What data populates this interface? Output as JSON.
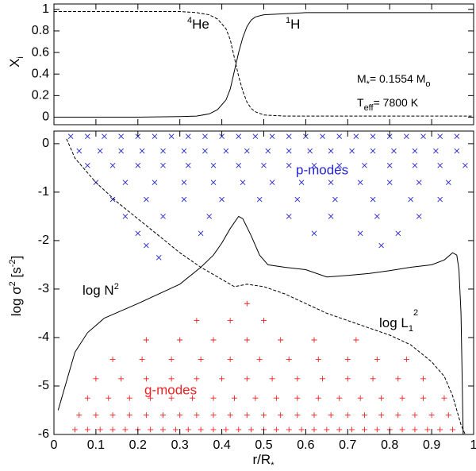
{
  "chart_data": [
    {
      "type": "line",
      "ylabel": {
        "base": "X",
        "sub": "i"
      },
      "annotations": [
        {
          "sup": "4",
          "text": "He"
        },
        {
          "sup": "1",
          "text": "H"
        },
        {
          "base": "M",
          "sub": "*",
          "text": "= 0.1554 M",
          "sub2": "o"
        },
        {
          "base": "T",
          "sub": "eff",
          "text": "= 7800 K"
        }
      ],
      "xlim": [
        0,
        1
      ],
      "ylim": [
        -0.07,
        1.05
      ],
      "xticks": [
        0,
        0.1,
        0.2,
        0.3,
        0.4,
        0.5,
        0.6,
        0.7,
        0.8,
        0.9,
        1
      ],
      "yticks": [
        0,
        0.2,
        0.4,
        0.6,
        0.8,
        1
      ],
      "series": [
        {
          "name": "4He",
          "color": "#000000",
          "dash": true,
          "x": [
            0,
            0.05,
            0.1,
            0.2,
            0.3,
            0.34,
            0.37,
            0.39,
            0.41,
            0.42,
            0.43,
            0.44,
            0.45,
            0.46,
            0.47,
            0.48,
            0.5,
            0.55,
            0.6,
            0.8,
            1
          ],
          "values": [
            0.98,
            0.98,
            0.98,
            0.98,
            0.98,
            0.97,
            0.95,
            0.91,
            0.82,
            0.72,
            0.55,
            0.38,
            0.24,
            0.14,
            0.08,
            0.05,
            0.02,
            0.01,
            0.01,
            0.01,
            0.01
          ]
        },
        {
          "name": "1H",
          "color": "#000000",
          "dash": false,
          "x": [
            0,
            0.05,
            0.1,
            0.2,
            0.3,
            0.34,
            0.37,
            0.39,
            0.41,
            0.42,
            0.43,
            0.44,
            0.45,
            0.46,
            0.47,
            0.48,
            0.5,
            0.55,
            0.6,
            0.8,
            1
          ],
          "values": [
            0,
            0,
            0,
            0,
            0.005,
            0.01,
            0.03,
            0.07,
            0.16,
            0.26,
            0.43,
            0.6,
            0.74,
            0.84,
            0.9,
            0.93,
            0.95,
            0.96,
            0.97,
            0.97,
            0.97
          ]
        }
      ]
    },
    {
      "type": "scatter",
      "xlabel": {
        "base": "r/R",
        "sub": "*"
      },
      "ylabel": {
        "base": "log σ",
        "sup": "2",
        "mid": " [s",
        "sup2": "-2",
        "end": "]"
      },
      "annotations": [
        {
          "text": "log N",
          "sup": "2"
        },
        {
          "text": "log L",
          "sub": "1",
          "sup": "2"
        },
        {
          "text": "p-modes"
        },
        {
          "text": "g-modes"
        }
      ],
      "xlim": [
        0,
        1
      ],
      "ylim": [
        -6,
        0.26
      ],
      "xticks": [
        0,
        0.1,
        0.2,
        0.3,
        0.4,
        0.5,
        0.6,
        0.7,
        0.8,
        0.9,
        1
      ],
      "yticks": [
        -6,
        -5,
        -4,
        -3,
        -2,
        -1,
        0
      ],
      "series": [
        {
          "name": "p-modes",
          "marker": "x",
          "color": "#2424d0",
          "x": [
            0.04,
            0.08,
            0.12,
            0.16,
            0.2,
            0.24,
            0.28,
            0.32,
            0.36,
            0.4,
            0.44,
            0.48,
            0.52,
            0.56,
            0.6,
            0.64,
            0.68,
            0.72,
            0.76,
            0.8,
            0.84,
            0.88,
            0.92,
            0.96,
            0.06,
            0.11,
            0.16,
            0.21,
            0.26,
            0.31,
            0.36,
            0.41,
            0.46,
            0.51,
            0.56,
            0.61,
            0.66,
            0.71,
            0.76,
            0.81,
            0.86,
            0.91,
            0.96,
            0.08,
            0.14,
            0.2,
            0.26,
            0.32,
            0.38,
            0.44,
            0.5,
            0.56,
            0.62,
            0.68,
            0.74,
            0.8,
            0.86,
            0.92,
            0.98,
            0.1,
            0.17,
            0.24,
            0.31,
            0.38,
            0.45,
            0.52,
            0.59,
            0.66,
            0.73,
            0.8,
            0.87,
            0.94,
            0.14,
            0.22,
            0.31,
            0.4,
            0.49,
            0.58,
            0.67,
            0.76,
            0.85,
            0.92,
            0.17,
            0.26,
            0.37,
            0.56,
            0.66,
            0.77,
            0.87,
            0.2,
            0.35,
            0.62,
            0.73,
            0.82,
            0.22,
            0.78,
            0.25
          ],
          "values": [
            0.15,
            0.15,
            0.15,
            0.15,
            0.15,
            0.15,
            0.15,
            0.15,
            0.15,
            0.15,
            0.15,
            0.15,
            0.15,
            0.15,
            0.15,
            0.15,
            0.15,
            0.15,
            0.15,
            0.15,
            0.15,
            0.15,
            0.15,
            0.15,
            -0.15,
            -0.15,
            -0.15,
            -0.15,
            -0.15,
            -0.15,
            -0.15,
            -0.15,
            -0.15,
            -0.15,
            -0.15,
            -0.15,
            -0.15,
            -0.15,
            -0.15,
            -0.15,
            -0.15,
            -0.15,
            -0.15,
            -0.45,
            -0.45,
            -0.45,
            -0.45,
            -0.45,
            -0.45,
            -0.45,
            -0.45,
            -0.45,
            -0.45,
            -0.45,
            -0.45,
            -0.45,
            -0.45,
            -0.45,
            -0.45,
            -0.8,
            -0.8,
            -0.8,
            -0.8,
            -0.8,
            -0.8,
            -0.8,
            -0.8,
            -0.8,
            -0.8,
            -0.8,
            -0.8,
            -0.8,
            -1.15,
            -1.15,
            -1.15,
            -1.15,
            -1.15,
            -1.15,
            -1.15,
            -1.15,
            -1.15,
            -1.15,
            -1.5,
            -1.5,
            -1.5,
            -1.5,
            -1.5,
            -1.5,
            -1.5,
            -1.85,
            -1.85,
            -1.85,
            -1.85,
            -1.85,
            -2.1,
            -2.1,
            -2.35
          ]
        },
        {
          "name": "g-modes",
          "marker": "+",
          "color": "#ee2222",
          "x": [
            0.05,
            0.08,
            0.11,
            0.14,
            0.17,
            0.2,
            0.23,
            0.26,
            0.29,
            0.32,
            0.35,
            0.38,
            0.41,
            0.44,
            0.47,
            0.5,
            0.53,
            0.56,
            0.59,
            0.62,
            0.65,
            0.68,
            0.71,
            0.74,
            0.77,
            0.8,
            0.83,
            0.86,
            0.89,
            0.92,
            0.95,
            0.06,
            0.1,
            0.14,
            0.18,
            0.22,
            0.26,
            0.3,
            0.34,
            0.38,
            0.42,
            0.46,
            0.5,
            0.54,
            0.58,
            0.62,
            0.66,
            0.7,
            0.74,
            0.78,
            0.82,
            0.86,
            0.9,
            0.94,
            0.08,
            0.13,
            0.18,
            0.23,
            0.28,
            0.33,
            0.38,
            0.43,
            0.48,
            0.53,
            0.58,
            0.63,
            0.68,
            0.73,
            0.78,
            0.83,
            0.88,
            0.93,
            0.1,
            0.16,
            0.22,
            0.28,
            0.34,
            0.4,
            0.46,
            0.52,
            0.58,
            0.64,
            0.7,
            0.76,
            0.82,
            0.88,
            0.14,
            0.21,
            0.28,
            0.35,
            0.42,
            0.49,
            0.56,
            0.63,
            0.7,
            0.77,
            0.84,
            0.22,
            0.3,
            0.38,
            0.46,
            0.54,
            0.62,
            0.72,
            0.34,
            0.42,
            0.5,
            0.46
          ],
          "values": [
            -5.9,
            -5.9,
            -5.9,
            -5.9,
            -5.9,
            -5.9,
            -5.9,
            -5.9,
            -5.9,
            -5.9,
            -5.9,
            -5.9,
            -5.9,
            -5.9,
            -5.9,
            -5.9,
            -5.9,
            -5.9,
            -5.9,
            -5.9,
            -5.9,
            -5.9,
            -5.9,
            -5.9,
            -5.9,
            -5.9,
            -5.9,
            -5.9,
            -5.9,
            -5.9,
            -5.9,
            -5.6,
            -5.6,
            -5.6,
            -5.6,
            -5.6,
            -5.6,
            -5.6,
            -5.6,
            -5.6,
            -5.6,
            -5.6,
            -5.6,
            -5.6,
            -5.6,
            -5.6,
            -5.6,
            -5.6,
            -5.6,
            -5.6,
            -5.6,
            -5.6,
            -5.6,
            -5.6,
            -5.25,
            -5.25,
            -5.25,
            -5.25,
            -5.25,
            -5.25,
            -5.25,
            -5.25,
            -5.25,
            -5.25,
            -5.25,
            -5.25,
            -5.25,
            -5.25,
            -5.25,
            -5.25,
            -5.25,
            -5.25,
            -4.85,
            -4.85,
            -4.85,
            -4.85,
            -4.85,
            -4.85,
            -4.85,
            -4.85,
            -4.85,
            -4.85,
            -4.85,
            -4.85,
            -4.85,
            -4.85,
            -4.45,
            -4.45,
            -4.45,
            -4.45,
            -4.45,
            -4.45,
            -4.45,
            -4.45,
            -4.45,
            -4.45,
            -4.45,
            -4.05,
            -4.05,
            -4.05,
            -4.05,
            -4.05,
            -4.05,
            -4.05,
            -3.65,
            -3.65,
            -3.65,
            -3.3
          ]
        },
        {
          "name": "log N2",
          "marker": "line",
          "color": "#000000",
          "dash": false,
          "x": [
            0.01,
            0.02,
            0.03,
            0.05,
            0.08,
            0.12,
            0.2,
            0.3,
            0.35,
            0.38,
            0.4,
            0.42,
            0.44,
            0.45,
            0.47,
            0.49,
            0.51,
            0.55,
            0.6,
            0.65,
            0.7,
            0.75,
            0.8,
            0.85,
            0.9,
            0.93,
            0.95,
            0.96,
            0.965,
            0.97,
            0.972,
            0.975
          ],
          "values": [
            -5.5,
            -5.2,
            -4.9,
            -4.3,
            -3.9,
            -3.6,
            -3.3,
            -2.9,
            -2.55,
            -2.3,
            -2.05,
            -1.75,
            -1.5,
            -1.55,
            -1.9,
            -2.3,
            -2.5,
            -2.55,
            -2.6,
            -2.75,
            -2.72,
            -2.68,
            -2.62,
            -2.55,
            -2.5,
            -2.4,
            -2.25,
            -2.3,
            -2.6,
            -3.5,
            -4.5,
            -6
          ]
        },
        {
          "name": "log L1 2",
          "marker": "line",
          "color": "#000000",
          "dash": true,
          "x": [
            0.03,
            0.05,
            0.1,
            0.15,
            0.2,
            0.25,
            0.3,
            0.35,
            0.4,
            0.43,
            0.46,
            0.5,
            0.55,
            0.6,
            0.65,
            0.7,
            0.75,
            0.8,
            0.85,
            0.9,
            0.93,
            0.95,
            0.97,
            0.98
          ],
          "values": [
            0.1,
            -0.3,
            -0.8,
            -1.2,
            -1.55,
            -1.9,
            -2.25,
            -2.55,
            -2.8,
            -2.95,
            -2.9,
            -2.95,
            -3.1,
            -3.3,
            -3.5,
            -3.65,
            -3.8,
            -3.95,
            -4.15,
            -4.5,
            -4.8,
            -5.2,
            -5.8,
            -6
          ]
        }
      ]
    }
  ]
}
